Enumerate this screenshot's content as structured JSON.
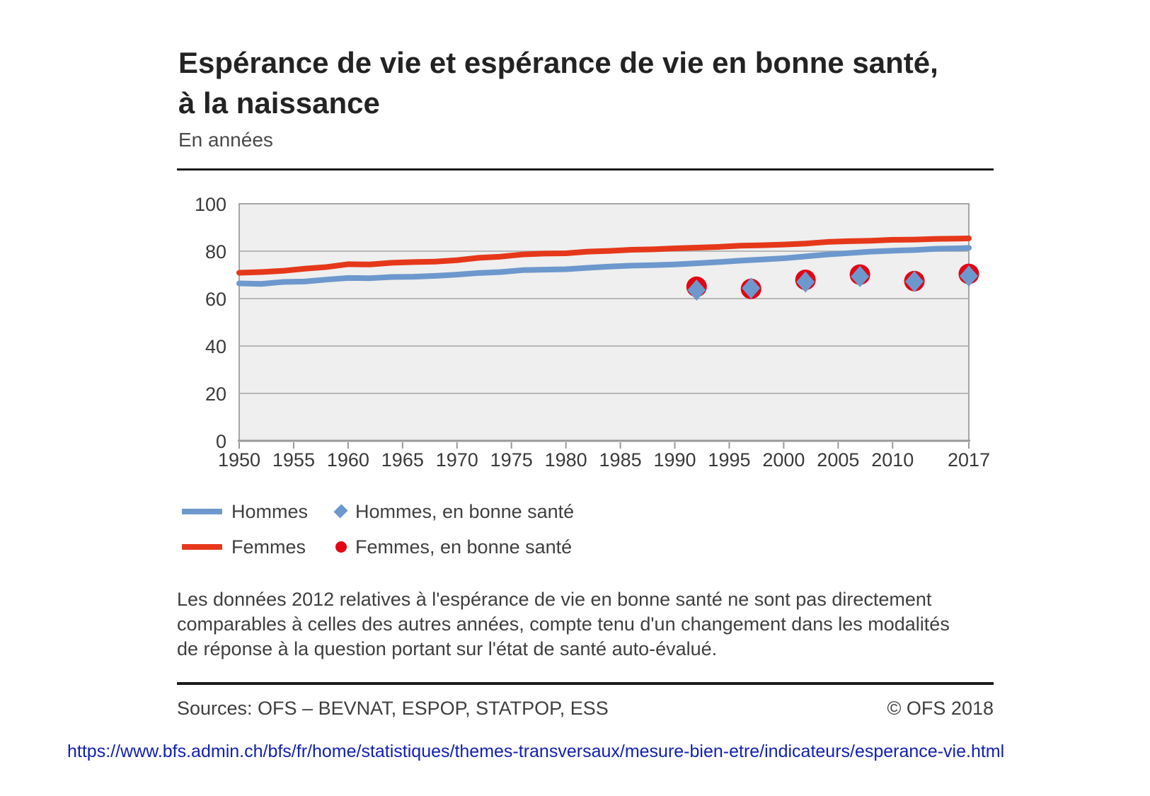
{
  "header": {
    "title_line1": "Espérance de vie et espérance de vie en bonne santé,",
    "title_line2": "à la naissance",
    "subtitle": "En années"
  },
  "chart_data": {
    "type": "line",
    "title": "Espérance de vie et espérance de vie en bonne santé, à la naissance",
    "unit_label": "En années",
    "x_range": [
      1950,
      2017
    ],
    "y_range": [
      0,
      100
    ],
    "y_ticks": [
      0,
      20,
      40,
      60,
      80,
      100
    ],
    "x_tick_years": [
      1950,
      1955,
      1960,
      1965,
      1970,
      1975,
      1980,
      1985,
      1990,
      1995,
      2000,
      2005,
      2010,
      2017
    ],
    "grid": true,
    "legend_position": "bottom",
    "colors": {
      "plot_bg": "#efefef",
      "grid": "#a6a6a6",
      "axis": "#999999",
      "tick_text": "#3a3a3a",
      "hommes": "#6d98cd",
      "femmes": "#e5381a",
      "femmes_marker": "#e30613"
    },
    "series": [
      {
        "name": "Hommes",
        "type": "line",
        "color": "#6d98cd",
        "points": [
          [
            1950,
            66.4
          ],
          [
            1952,
            66.2
          ],
          [
            1954,
            67.0
          ],
          [
            1956,
            67.2
          ],
          [
            1958,
            68.0
          ],
          [
            1960,
            68.7
          ],
          [
            1962,
            68.6
          ],
          [
            1964,
            69.1
          ],
          [
            1966,
            69.2
          ],
          [
            1968,
            69.6
          ],
          [
            1970,
            70.1
          ],
          [
            1972,
            70.8
          ],
          [
            1974,
            71.2
          ],
          [
            1976,
            72.0
          ],
          [
            1978,
            72.2
          ],
          [
            1980,
            72.4
          ],
          [
            1982,
            73.0
          ],
          [
            1984,
            73.5
          ],
          [
            1986,
            73.9
          ],
          [
            1988,
            74.1
          ],
          [
            1990,
            74.4
          ],
          [
            1992,
            74.9
          ],
          [
            1994,
            75.4
          ],
          [
            1996,
            76.0
          ],
          [
            1998,
            76.5
          ],
          [
            2000,
            77.0
          ],
          [
            2002,
            77.8
          ],
          [
            2004,
            78.6
          ],
          [
            2006,
            79.2
          ],
          [
            2008,
            79.8
          ],
          [
            2010,
            80.2
          ],
          [
            2012,
            80.5
          ],
          [
            2014,
            81.0
          ],
          [
            2016,
            81.2
          ],
          [
            2017,
            81.4
          ]
        ]
      },
      {
        "name": "Femmes",
        "type": "line",
        "color": "#e5381a",
        "points": [
          [
            1950,
            70.9
          ],
          [
            1952,
            71.2
          ],
          [
            1954,
            71.7
          ],
          [
            1956,
            72.6
          ],
          [
            1958,
            73.3
          ],
          [
            1960,
            74.5
          ],
          [
            1962,
            74.4
          ],
          [
            1964,
            75.1
          ],
          [
            1966,
            75.4
          ],
          [
            1968,
            75.6
          ],
          [
            1970,
            76.2
          ],
          [
            1972,
            77.2
          ],
          [
            1974,
            77.7
          ],
          [
            1976,
            78.6
          ],
          [
            1978,
            79.0
          ],
          [
            1980,
            79.1
          ],
          [
            1982,
            79.8
          ],
          [
            1984,
            80.1
          ],
          [
            1986,
            80.6
          ],
          [
            1988,
            80.8
          ],
          [
            1990,
            81.2
          ],
          [
            1992,
            81.5
          ],
          [
            1994,
            81.8
          ],
          [
            1996,
            82.3
          ],
          [
            1998,
            82.5
          ],
          [
            2000,
            82.8
          ],
          [
            2002,
            83.2
          ],
          [
            2004,
            83.9
          ],
          [
            2006,
            84.2
          ],
          [
            2008,
            84.4
          ],
          [
            2010,
            84.8
          ],
          [
            2012,
            84.9
          ],
          [
            2014,
            85.2
          ],
          [
            2016,
            85.3
          ],
          [
            2017,
            85.4
          ]
        ]
      },
      {
        "name": "Femmes, en bonne santé",
        "type": "scatter-circle",
        "color": "#e30613",
        "points": [
          [
            1992,
            65.0
          ],
          [
            1997,
            64.1
          ],
          [
            2002,
            67.9
          ],
          [
            2007,
            70.1
          ],
          [
            2012,
            67.4
          ],
          [
            2017,
            70.4
          ]
        ]
      },
      {
        "name": "Hommes, en bonne santé",
        "type": "scatter-diamond",
        "color": "#6d98cd",
        "points": [
          [
            1992,
            63.6
          ],
          [
            1997,
            64.4
          ],
          [
            2002,
            67.0
          ],
          [
            2007,
            69.3
          ],
          [
            2012,
            67.2
          ],
          [
            2017,
            69.5
          ]
        ]
      }
    ]
  },
  "legend": {
    "hommes": "Hommes",
    "femmes": "Femmes",
    "hommes_sante": "Hommes, en bonne santé",
    "femmes_sante": "Femmes, en bonne santé"
  },
  "footnote": {
    "lines": [
      "Les données 2012 relatives à l'espérance de vie en bonne santé ne sont pas directement",
      "comparables à celles des autres années, compte tenu d'un changement dans les modalités",
      "de réponse à la question portant sur l'état de santé auto-évalué."
    ]
  },
  "footer": {
    "sources": "Sources: OFS – BEVNAT, ESPOP, STATPOP, ESS",
    "copyright": "© OFS 2018"
  },
  "link": {
    "url": "https://www.bfs.admin.ch/bfs/fr/home/statistiques/themes-transversaux/mesure-bien-etre/indicateurs/esperance-vie.html"
  }
}
